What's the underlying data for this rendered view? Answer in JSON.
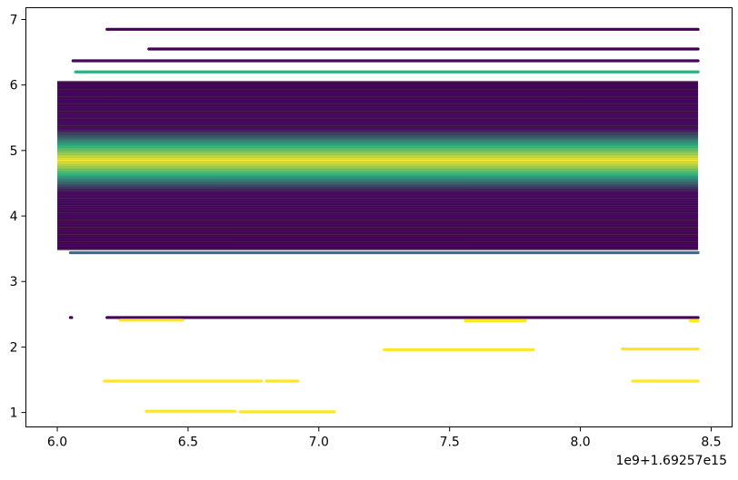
{
  "chart_data": {
    "type": "scatter",
    "colormap": "viridis",
    "x_offset_label": "1e9+1.69257e15",
    "xlim": [
      5.88,
      8.58
    ],
    "ylim": [
      0.78,
      7.18
    ],
    "xticks": [
      6.0,
      6.5,
      7.0,
      7.5,
      8.0,
      8.5
    ],
    "xtick_labels": [
      "6.0",
      "6.5",
      "7.0",
      "7.5",
      "8.0",
      "8.5"
    ],
    "yticks": [
      1,
      2,
      3,
      4,
      5,
      6,
      7
    ],
    "ytick_labels": [
      "1",
      "2",
      "3",
      "4",
      "5",
      "6",
      "7"
    ],
    "grid": false,
    "colors": {
      "dark_purple": "#440154",
      "purple": "#46085c",
      "blue": "#3b6e8f",
      "teal": "#21918c",
      "green": "#2db27d",
      "yellow": "#fde725"
    },
    "band": {
      "x": [
        6.0,
        8.45
      ],
      "y": [
        3.48,
        6.06
      ],
      "peak_y": 4.85,
      "peak_halfwidth": 0.22
    },
    "segments": [
      {
        "x0": 6.19,
        "x1": 8.45,
        "y": 6.85,
        "color": "dark_purple"
      },
      {
        "x0": 6.35,
        "x1": 8.45,
        "y": 6.55,
        "color": "dark_purple"
      },
      {
        "x0": 6.06,
        "x1": 8.45,
        "y": 6.37,
        "color": "purple"
      },
      {
        "x0": 6.07,
        "x1": 8.45,
        "y": 6.2,
        "color": "green"
      },
      {
        "x0": 6.05,
        "x1": 8.45,
        "y": 3.44,
        "color": "blue"
      },
      {
        "x0": 6.05,
        "x1": 6.055,
        "y": 2.45,
        "color": "dark_purple"
      },
      {
        "x0": 6.19,
        "x1": 8.45,
        "y": 2.45,
        "color": "dark_purple"
      },
      {
        "x0": 6.24,
        "x1": 6.48,
        "y": 2.41,
        "color": "yellow"
      },
      {
        "x0": 7.56,
        "x1": 7.79,
        "y": 2.4,
        "color": "yellow"
      },
      {
        "x0": 8.42,
        "x1": 8.45,
        "y": 2.4,
        "color": "yellow"
      },
      {
        "x0": 7.25,
        "x1": 7.82,
        "y": 1.96,
        "color": "yellow"
      },
      {
        "x0": 8.16,
        "x1": 8.45,
        "y": 1.97,
        "color": "yellow"
      },
      {
        "x0": 6.18,
        "x1": 6.78,
        "y": 1.48,
        "color": "yellow"
      },
      {
        "x0": 6.8,
        "x1": 6.92,
        "y": 1.48,
        "color": "yellow"
      },
      {
        "x0": 8.2,
        "x1": 8.45,
        "y": 1.48,
        "color": "yellow"
      },
      {
        "x0": 6.34,
        "x1": 6.68,
        "y": 1.02,
        "color": "yellow"
      },
      {
        "x0": 6.7,
        "x1": 7.06,
        "y": 1.01,
        "color": "yellow"
      }
    ]
  }
}
